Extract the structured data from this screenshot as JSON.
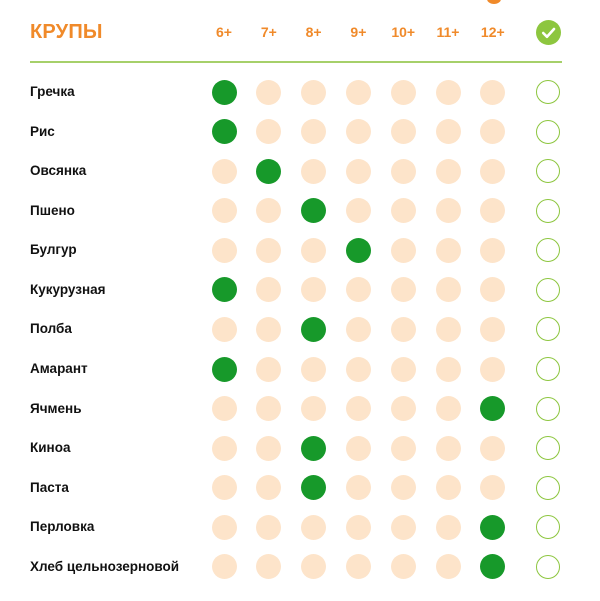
{
  "header": {
    "title": "КРУПЫ",
    "ages": [
      "6+",
      "7+",
      "8+",
      "9+",
      "10+",
      "11+",
      "12+"
    ],
    "check_icon": "check-circle-icon"
  },
  "rows": [
    {
      "label": "Гречка",
      "age": 6,
      "done": false
    },
    {
      "label": "Рис",
      "age": 6,
      "done": false
    },
    {
      "label": "Овсянка",
      "age": 7,
      "done": false
    },
    {
      "label": "Пшено",
      "age": 8,
      "done": false
    },
    {
      "label": "Булгур",
      "age": 9,
      "done": false
    },
    {
      "label": "Кукурузная",
      "age": 6,
      "done": false
    },
    {
      "label": "Полба",
      "age": 8,
      "done": false
    },
    {
      "label": "Амарант",
      "age": 6,
      "done": false
    },
    {
      "label": "Ячмень",
      "age": 12,
      "done": false
    },
    {
      "label": "Киноа",
      "age": 8,
      "done": false
    },
    {
      "label": "Паста",
      "age": 8,
      "done": false
    },
    {
      "label": "Перловка",
      "age": 12,
      "done": false
    },
    {
      "label": "Хлеб цельнозерновой",
      "age": 12,
      "done": false
    }
  ],
  "colors": {
    "accent": "#F08A2A",
    "green": "#17992A",
    "peach": "#FDE4CA",
    "check": "#8DC63F",
    "divider": "#A6D06A",
    "text": "#111111"
  }
}
